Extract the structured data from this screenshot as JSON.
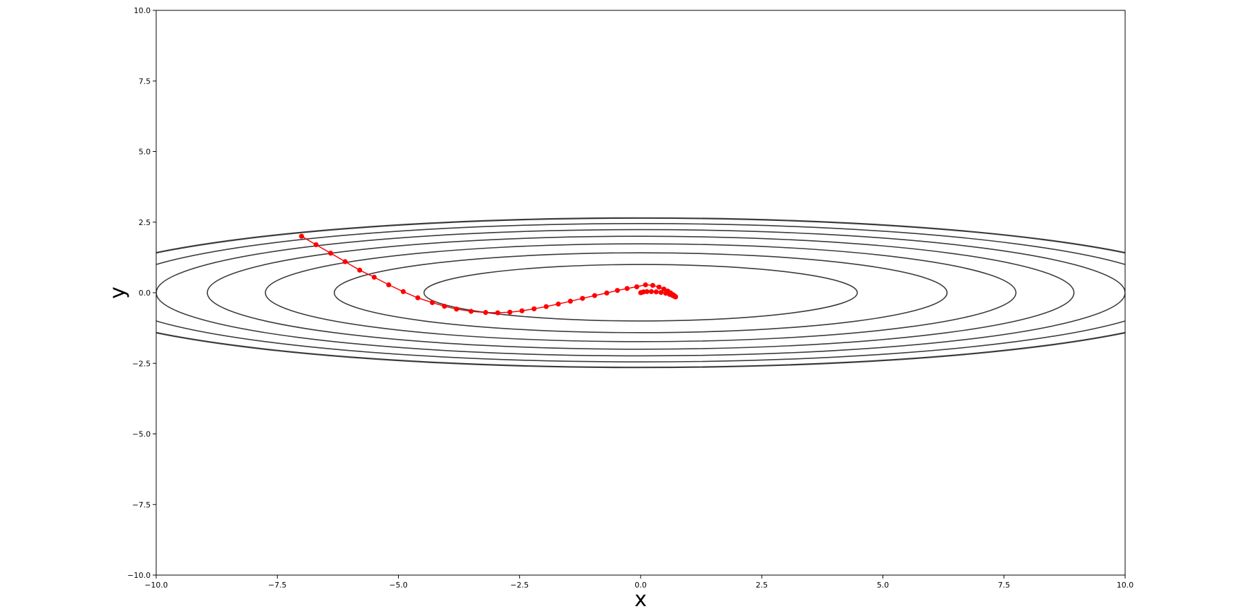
{
  "chart_data": {
    "type": "line",
    "xlabel": "x",
    "ylabel": "y",
    "xlim": [
      -10,
      10
    ],
    "ylim": [
      -10,
      10
    ],
    "xticks": [
      -10.0,
      -7.5,
      -5.0,
      -2.5,
      0.0,
      2.5,
      5.0,
      7.5,
      10.0
    ],
    "yticks": [
      -10.0,
      -7.5,
      -5.0,
      -2.5,
      0.0,
      2.5,
      5.0,
      7.5,
      10.0
    ],
    "xtick_labels": [
      "−10.0",
      "−7.5",
      "−5.0",
      "−2.5",
      "0.0",
      "2.5",
      "5.0",
      "7.5",
      "10.0"
    ],
    "ytick_labels": [
      "−10.0",
      "−7.5",
      "−5.0",
      "−2.5",
      "0.0",
      "2.5",
      "5.0",
      "7.5",
      "10.0"
    ],
    "grid": false,
    "contours": {
      "function": "x^2/20 + y^2",
      "levels": [
        1,
        2,
        3,
        4,
        5,
        6,
        7
      ],
      "color": "#3a3a3a"
    },
    "series": [
      {
        "color": "#ff0000",
        "marker": "circle",
        "x": [
          -7.0,
          -6.7,
          -6.4,
          -6.1,
          -5.8,
          -5.5,
          -5.2,
          -4.9,
          -4.6,
          -4.3,
          -4.05,
          -3.8,
          -3.5,
          -3.2,
          -2.95,
          -2.7,
          -2.45,
          -2.2,
          -1.95,
          -1.7,
          -1.45,
          -1.2,
          -0.95,
          -0.7,
          -0.48,
          -0.28,
          -0.08,
          0.1,
          0.25,
          0.38,
          0.48,
          0.56,
          0.62,
          0.67,
          0.7,
          0.72,
          0.72,
          0.7,
          0.66,
          0.6,
          0.52,
          0.42,
          0.32,
          0.22,
          0.13,
          0.06,
          0.02,
          0.0
        ],
        "y": [
          2.0,
          1.7,
          1.4,
          1.1,
          0.8,
          0.55,
          0.28,
          0.04,
          -0.18,
          -0.35,
          -0.48,
          -0.58,
          -0.66,
          -0.7,
          -0.71,
          -0.69,
          -0.64,
          -0.57,
          -0.49,
          -0.4,
          -0.3,
          -0.2,
          -0.1,
          -0.01,
          0.08,
          0.15,
          0.21,
          0.28,
          0.26,
          0.2,
          0.13,
          0.06,
          -0.01,
          -0.07,
          -0.11,
          -0.14,
          -0.15,
          -0.13,
          -0.1,
          -0.06,
          -0.02,
          0.01,
          0.03,
          0.04,
          0.04,
          0.03,
          0.01,
          0.0
        ]
      }
    ]
  }
}
